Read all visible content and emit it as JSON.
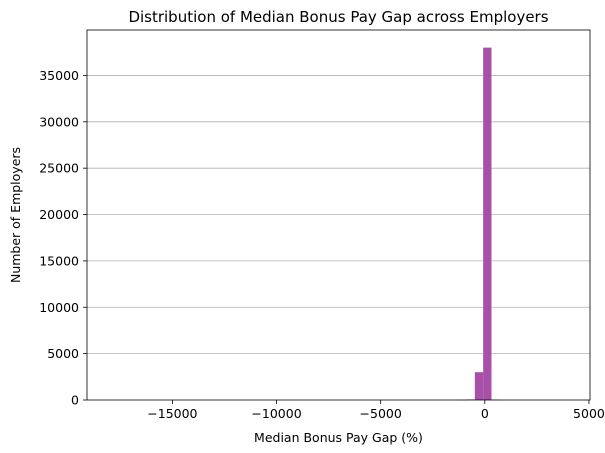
{
  "chart_data": {
    "type": "bar",
    "title": "Distribution of Median Bonus Pay Gap across Employers",
    "xlabel": "Median Bonus Pay Gap (%)",
    "ylabel": "Number of Employers",
    "xlim": [
      -19100,
      5050
    ],
    "ylim": [
      0,
      39900
    ],
    "x_ticks": [
      -15000,
      -10000,
      -5000,
      0,
      5000
    ],
    "x_tick_labels": [
      "−15000",
      "−10000",
      "−5000",
      "0",
      "5000"
    ],
    "y_ticks": [
      0,
      5000,
      10000,
      15000,
      20000,
      25000,
      30000,
      35000
    ],
    "y_tick_labels": [
      "0",
      "5000",
      "10000",
      "15000",
      "20000",
      "25000",
      "30000",
      "35000"
    ],
    "grid": "y-axis, horizontal gridlines",
    "bar_color": "#a64ca6",
    "bins": [
      {
        "x0": -1280,
        "x1": -880,
        "value": 15
      },
      {
        "x0": -880,
        "x1": -480,
        "value": 60
      },
      {
        "x0": -480,
        "x1": -80,
        "value": 3000
      },
      {
        "x0": -80,
        "x1": 320,
        "value": 38000
      },
      {
        "x0": 320,
        "x1": 720,
        "value": 30
      }
    ]
  }
}
